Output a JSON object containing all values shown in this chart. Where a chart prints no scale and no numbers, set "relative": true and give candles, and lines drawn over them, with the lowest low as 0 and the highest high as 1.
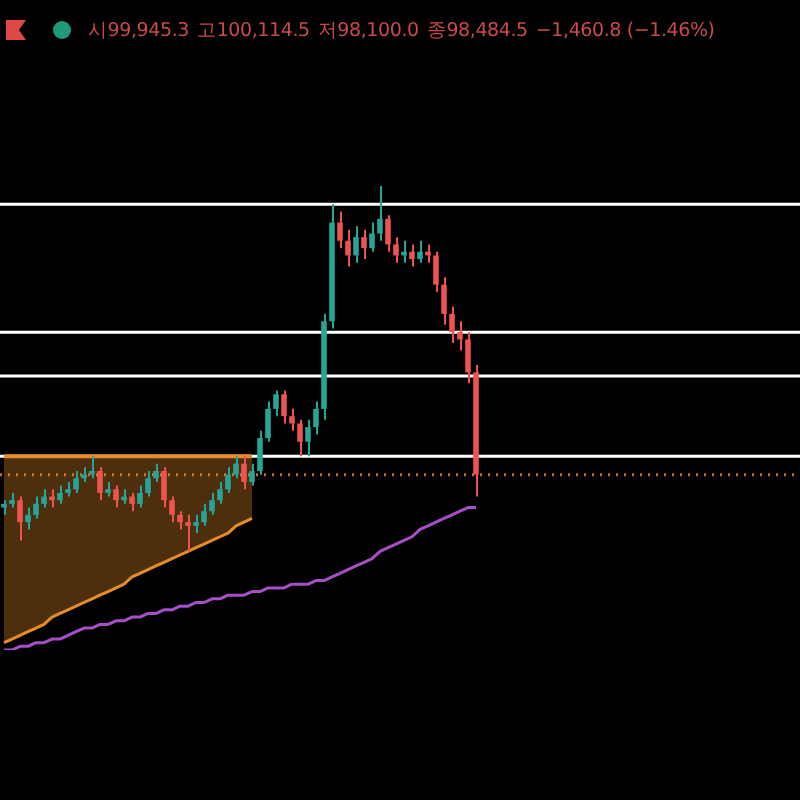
{
  "chart_data": {
    "type": "candlestick",
    "relative": true,
    "annotations": [
      "시99,945.3",
      "고100,114.5",
      "저98,100.0",
      "종98,484.5",
      "−1,460.8 (−1.46%)"
    ],
    "categories": [
      null,
      null,
      null,
      null,
      null,
      null,
      null,
      null,
      null,
      null,
      null,
      null,
      null,
      null,
      null,
      null,
      null,
      null,
      null,
      null,
      null,
      null,
      null,
      null,
      null,
      null,
      null,
      null,
      null,
      null,
      null,
      null,
      null,
      null,
      null,
      null,
      null,
      null,
      null,
      null,
      null,
      null,
      null,
      null,
      null,
      null,
      null,
      null,
      null,
      null,
      null,
      null,
      null,
      null,
      null,
      null,
      null,
      null,
      null,
      null,
      null,
      null,
      null,
      null,
      null,
      null,
      null,
      null,
      null,
      null,
      null,
      null,
      null,
      null,
      null,
      null,
      null,
      null,
      null,
      null,
      null,
      null,
      null,
      null,
      null,
      null,
      null,
      null,
      null,
      null,
      null,
      null,
      null,
      null,
      null,
      null,
      null,
      null,
      null,
      null
    ],
    "ohlc": [
      [
        0.12,
        0.14,
        0.1,
        0.13
      ],
      [
        0.13,
        0.16,
        0.12,
        0.14
      ],
      [
        0.14,
        0.15,
        0.03,
        0.08
      ],
      [
        0.08,
        0.12,
        0.06,
        0.1
      ],
      [
        0.1,
        0.15,
        0.09,
        0.13
      ],
      [
        0.13,
        0.17,
        0.12,
        0.15
      ],
      [
        0.15,
        0.17,
        0.12,
        0.14
      ],
      [
        0.14,
        0.18,
        0.13,
        0.16
      ],
      [
        0.16,
        0.19,
        0.15,
        0.17
      ],
      [
        0.17,
        0.22,
        0.16,
        0.2
      ],
      [
        0.2,
        0.23,
        0.19,
        0.21
      ],
      [
        0.21,
        0.26,
        0.2,
        0.22
      ],
      [
        0.22,
        0.23,
        0.14,
        0.16
      ],
      [
        0.16,
        0.19,
        0.15,
        0.17
      ],
      [
        0.17,
        0.18,
        0.12,
        0.14
      ],
      [
        0.14,
        0.17,
        0.13,
        0.15
      ],
      [
        0.15,
        0.16,
        0.11,
        0.13
      ],
      [
        0.13,
        0.18,
        0.12,
        0.16
      ],
      [
        0.16,
        0.22,
        0.15,
        0.2
      ],
      [
        0.2,
        0.24,
        0.19,
        0.22
      ],
      [
        0.22,
        0.23,
        0.12,
        0.14
      ],
      [
        0.14,
        0.15,
        0.08,
        0.1
      ],
      [
        0.1,
        0.11,
        0.06,
        0.08
      ],
      [
        0.08,
        0.1,
        0.0,
        0.07
      ],
      [
        0.07,
        0.1,
        0.05,
        0.08
      ],
      [
        0.08,
        0.13,
        0.07,
        0.11
      ],
      [
        0.11,
        0.16,
        0.1,
        0.14
      ],
      [
        0.14,
        0.19,
        0.13,
        0.17
      ],
      [
        0.17,
        0.23,
        0.16,
        0.21
      ],
      [
        0.21,
        0.26,
        0.2,
        0.24
      ],
      [
        0.24,
        0.26,
        0.17,
        0.19
      ],
      [
        0.19,
        0.24,
        0.18,
        0.22
      ],
      [
        0.22,
        0.33,
        0.21,
        0.31
      ],
      [
        0.31,
        0.41,
        0.3,
        0.39
      ],
      [
        0.39,
        0.44,
        0.37,
        0.43
      ],
      [
        0.43,
        0.44,
        0.35,
        0.37
      ],
      [
        0.37,
        0.39,
        0.33,
        0.35
      ],
      [
        0.35,
        0.36,
        0.26,
        0.3
      ],
      [
        0.3,
        0.36,
        0.26,
        0.34
      ],
      [
        0.34,
        0.41,
        0.32,
        0.39
      ],
      [
        0.39,
        0.65,
        0.36,
        0.63
      ],
      [
        0.63,
        0.95,
        0.61,
        0.9
      ],
      [
        0.9,
        0.93,
        0.83,
        0.85
      ],
      [
        0.85,
        0.88,
        0.78,
        0.81
      ],
      [
        0.81,
        0.89,
        0.79,
        0.86
      ],
      [
        0.86,
        0.88,
        0.8,
        0.83
      ],
      [
        0.83,
        0.9,
        0.82,
        0.87
      ],
      [
        0.87,
        1.0,
        0.85,
        0.91
      ],
      [
        0.91,
        0.92,
        0.82,
        0.84
      ],
      [
        0.84,
        0.86,
        0.79,
        0.81
      ],
      [
        0.81,
        0.85,
        0.79,
        0.82
      ],
      [
        0.82,
        0.84,
        0.78,
        0.8
      ],
      [
        0.8,
        0.85,
        0.79,
        0.82
      ],
      [
        0.82,
        0.84,
        0.79,
        0.81
      ],
      [
        0.81,
        0.82,
        0.71,
        0.73
      ],
      [
        0.73,
        0.75,
        0.62,
        0.65
      ],
      [
        0.65,
        0.67,
        0.57,
        0.6
      ],
      [
        0.6,
        0.63,
        0.55,
        0.58
      ],
      [
        0.58,
        0.6,
        0.46,
        0.49
      ],
      [
        0.49,
        0.51,
        0.15,
        0.21
      ],
      null,
      null,
      null,
      null,
      null,
      null,
      null,
      null,
      null,
      null,
      null,
      null,
      null,
      null,
      null,
      null,
      null,
      null,
      null,
      null,
      null,
      null,
      null,
      null,
      null,
      null,
      null,
      null,
      null,
      null,
      null,
      null,
      null,
      null,
      null,
      null,
      null,
      null,
      null,
      null
    ],
    "series": [
      {
        "type": "line",
        "color": "#e68c28",
        "values": [
          -0.25,
          -0.24,
          -0.23,
          -0.22,
          -0.21,
          -0.2,
          -0.18,
          -0.17,
          -0.16,
          -0.15,
          -0.14,
          -0.13,
          -0.12,
          -0.11,
          -0.1,
          -0.09,
          -0.07,
          -0.06,
          -0.05,
          -0.04,
          -0.03,
          -0.02,
          -0.01,
          0.0,
          0.01,
          0.02,
          0.03,
          0.04,
          0.05,
          0.07,
          0.08,
          0.09,
          null,
          null,
          null,
          null,
          null,
          null,
          null,
          null,
          null,
          null,
          null,
          null,
          null,
          null,
          null,
          null,
          null,
          null,
          null,
          null,
          null,
          null,
          null,
          null,
          null,
          null,
          null,
          null,
          null,
          null,
          null,
          null,
          null,
          null,
          null,
          null,
          null,
          null,
          null,
          null,
          null,
          null,
          null,
          null,
          null,
          null,
          null,
          null,
          null,
          null,
          null,
          null,
          null,
          null,
          null,
          null,
          null,
          null,
          null,
          null,
          null,
          null,
          null,
          null,
          null,
          null,
          null,
          null
        ]
      },
      {
        "type": "area",
        "color": "#e68c28",
        "values": [
          0.26,
          0.26,
          0.26,
          0.26,
          0.26,
          0.26,
          0.26,
          0.26,
          0.26,
          0.26,
          0.26,
          0.26,
          0.26,
          0.26,
          0.26,
          0.26,
          0.26,
          0.26,
          0.26,
          0.26,
          0.26,
          0.26,
          0.26,
          0.26,
          0.26,
          0.26,
          0.26,
          0.26,
          0.26,
          0.26,
          0.26,
          0.26,
          null,
          null,
          null,
          null,
          null,
          null,
          null,
          null,
          null,
          null,
          null,
          null,
          null,
          null,
          null,
          null,
          null,
          null,
          null,
          null,
          null,
          null,
          null,
          null,
          null,
          null,
          null,
          null,
          null,
          null,
          null,
          null,
          null,
          null,
          null,
          null,
          null,
          null,
          null,
          null,
          null,
          null,
          null,
          null,
          null,
          null,
          null,
          null,
          null,
          null,
          null,
          null,
          null,
          null,
          null,
          null,
          null,
          null,
          null,
          null,
          null,
          null,
          null,
          null,
          null,
          null,
          null,
          null
        ]
      },
      {
        "type": "line",
        "color": "#a64fc9",
        "values": [
          -0.27,
          -0.27,
          -0.26,
          -0.26,
          -0.25,
          -0.25,
          -0.24,
          -0.24,
          -0.23,
          -0.22,
          -0.21,
          -0.21,
          -0.2,
          -0.2,
          -0.19,
          -0.19,
          -0.18,
          -0.18,
          -0.17,
          -0.17,
          -0.16,
          -0.16,
          -0.15,
          -0.15,
          -0.14,
          -0.14,
          -0.13,
          -0.13,
          -0.12,
          -0.12,
          -0.12,
          -0.11,
          -0.11,
          -0.1,
          -0.1,
          -0.1,
          -0.09,
          -0.09,
          -0.09,
          -0.08,
          -0.08,
          -0.07,
          -0.06,
          -0.05,
          -0.04,
          -0.03,
          -0.02,
          0.0,
          0.01,
          0.02,
          0.03,
          0.04,
          0.06,
          0.07,
          0.08,
          0.09,
          0.1,
          0.11,
          0.12,
          0.12,
          null,
          null,
          null,
          null,
          null,
          null,
          null,
          null,
          null,
          null,
          null,
          null,
          null,
          null,
          null,
          null,
          null,
          null,
          null,
          null,
          null,
          null,
          null,
          null,
          null,
          null,
          null,
          null,
          null,
          null,
          null,
          null,
          null,
          null,
          null,
          null,
          null,
          null,
          null,
          null
        ]
      }
    ],
    "ref_lines": [
      {
        "axis": "y",
        "value": 0.95,
        "color": "#ffffff"
      },
      {
        "axis": "y",
        "value": 0.6,
        "color": "#ffffff"
      },
      {
        "axis": "y",
        "value": 0.48,
        "color": "#ffffff"
      },
      {
        "axis": "y",
        "value": 0.26,
        "color": "#ffffff"
      },
      {
        "axis": "y",
        "value": 0.21,
        "color": "#c0703a",
        "line_style": "dotted"
      }
    ]
  }
}
